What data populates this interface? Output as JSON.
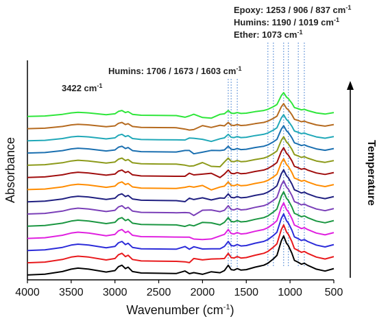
{
  "chart_data": {
    "type": "line",
    "xlabel": "Wavenumber (cm",
    "xlabel_superscript": "-1",
    "xlabel_suffix": ")",
    "ylabel": "Absorbance",
    "xlim": [
      4000,
      500
    ],
    "x_reversed": true,
    "x_ticks": [
      4000,
      3500,
      3000,
      2500,
      2000,
      1500,
      1000,
      500
    ],
    "y_ticks_shown": false,
    "right_label": "Temperature",
    "annotations": [
      {
        "id": "a3422",
        "text": "3422 cm",
        "sup": "-1"
      },
      {
        "id": "humins1",
        "text": "Humins: 1706 / 1673 / 1603 cm",
        "sup": "-1"
      },
      {
        "id": "epoxy",
        "text": "Epoxy: 1253 / 906 / 837 cm",
        "sup": "-1"
      },
      {
        "id": "humins2",
        "text": "Humins: 1190 / 1019 cm",
        "sup": "-1"
      },
      {
        "id": "ether",
        "text": "Ether: 1073 cm",
        "sup": "-1"
      }
    ],
    "marked_wavenumbers": [
      1706,
      1673,
      1603,
      1253,
      1190,
      1073,
      1019,
      906,
      837
    ],
    "series_colors_bottom_to_top": [
      "#000000",
      "#e8191c",
      "#2b2bd9",
      "#e020e0",
      "#1a9641",
      "#7a3fb8",
      "#1f1f80",
      "#ff8c00",
      "#a00d0d",
      "#8c9a1a",
      "#1a6fb0",
      "#20a8b8",
      "#b56a1f",
      "#2ee63a"
    ],
    "x": [
      4000,
      3800,
      3600,
      3500,
      3422,
      3300,
      3100,
      3000,
      2960,
      2920,
      2880,
      2850,
      2800,
      2700,
      2500,
      2300,
      2200,
      2150,
      2100,
      2000,
      1900,
      1800,
      1750,
      1706,
      1673,
      1640,
      1603,
      1560,
      1500,
      1400,
      1300,
      1253,
      1190,
      1150,
      1100,
      1073,
      1040,
      1019,
      980,
      950,
      906,
      870,
      837,
      800,
      700,
      600,
      500
    ],
    "profile": [
      0.0,
      0.15,
      0.7,
      1.2,
      1.4,
      1.2,
      0.6,
      0.9,
      1.7,
      2.0,
      1.3,
      1.6,
      0.7,
      0.4,
      0.35,
      0.3,
      0.3,
      0.35,
      0.3,
      0.35,
      0.35,
      0.4,
      0.9,
      2.0,
      1.1,
      1.0,
      1.3,
      1.0,
      1.1,
      1.6,
      2.0,
      2.4,
      3.3,
      4.0,
      7.0,
      8.0,
      6.5,
      6.0,
      4.5,
      3.0,
      2.6,
      2.2,
      2.4,
      2.0,
      1.2,
      0.8,
      1.3
    ],
    "baseline_offsets_bottom_to_top": [
      0.0,
      2.5,
      5.0,
      7.5,
      10.0,
      12.5,
      15.0,
      17.5,
      20.0,
      22.5,
      25.0,
      27.5,
      30.0,
      32.5
    ],
    "ylim": [
      -1,
      44
    ]
  }
}
